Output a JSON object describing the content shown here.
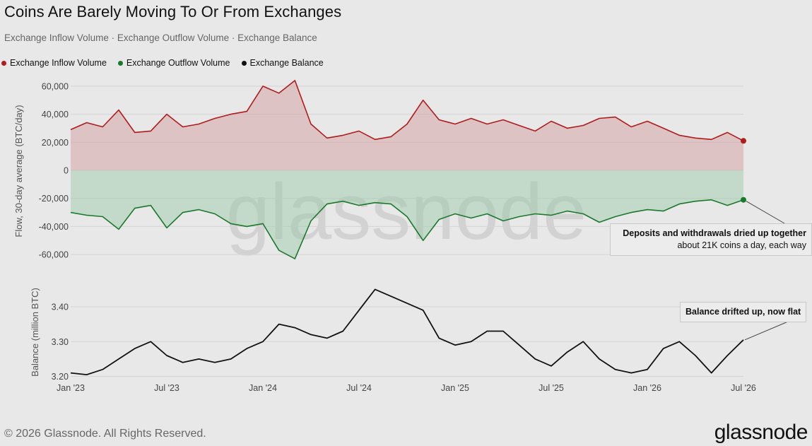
{
  "title": "Coins Are Barely Moving To Or From Exchanges",
  "subtitle": "Exchange Inflow Volume · Exchange Outflow Volume · Exchange Balance",
  "legend": [
    {
      "label": "Exchange Inflow Volume",
      "color": "#b01c1c"
    },
    {
      "label": "Exchange Outflow Volume",
      "color": "#1a7a2c"
    },
    {
      "label": "Exchange Balance",
      "color": "#111111"
    }
  ],
  "annotations": {
    "flow_title": "Deposits and withdrawals dried up together",
    "flow_body": "about 21K coins a day, each way",
    "balance": "Balance drifted up, now flat"
  },
  "footer": "© 2026 Glassnode. All Rights Reserved.",
  "brand": "glassnode",
  "watermark": "glassnode",
  "chart_data": [
    {
      "type": "area",
      "ylabel": "Flow, 30-day average (BTC/day)",
      "ylim": [
        -68000,
        68000
      ],
      "yticks": [
        60000,
        40000,
        20000,
        0,
        -20000,
        -40000,
        -60000
      ],
      "ytick_labels": [
        "60,000",
        "40,000",
        "20,000",
        "0",
        "-20,000",
        "-40,000",
        "-60,000"
      ],
      "grid": true,
      "x": [
        "2023-01",
        "2023-02",
        "2023-03",
        "2023-04",
        "2023-05",
        "2023-06",
        "2023-07",
        "2023-08",
        "2023-09",
        "2023-10",
        "2023-11",
        "2023-12",
        "2024-01",
        "2024-02",
        "2024-03",
        "2024-04",
        "2024-05",
        "2024-06",
        "2024-07",
        "2024-08",
        "2024-09",
        "2024-10",
        "2024-11",
        "2024-12",
        "2025-01",
        "2025-02",
        "2025-03",
        "2025-04",
        "2025-05",
        "2025-06",
        "2025-07",
        "2025-08",
        "2025-09",
        "2025-10",
        "2025-11",
        "2025-12",
        "2026-01",
        "2026-02",
        "2026-03",
        "2026-04",
        "2026-05",
        "2026-06",
        "2026-07"
      ],
      "series": [
        {
          "name": "Exchange Inflow Volume",
          "color": "#b01c1c",
          "values": [
            29000,
            34000,
            31000,
            43000,
            27000,
            28000,
            40000,
            31000,
            33000,
            37000,
            40000,
            42000,
            60000,
            55000,
            64000,
            33000,
            23000,
            25000,
            28000,
            22000,
            24000,
            33000,
            50000,
            36000,
            33000,
            37000,
            33000,
            36000,
            32000,
            28000,
            35000,
            30000,
            32000,
            37000,
            38000,
            31000,
            35000,
            30000,
            25000,
            23000,
            22000,
            27000,
            21000
          ]
        },
        {
          "name": "Exchange Outflow Volume",
          "color": "#1a7a2c",
          "values": [
            -30000,
            -32000,
            -33000,
            -42000,
            -27000,
            -25000,
            -41000,
            -30000,
            -28000,
            -31000,
            -38000,
            -40000,
            -38000,
            -57000,
            -63000,
            -36000,
            -24000,
            -22000,
            -25000,
            -23000,
            -24000,
            -33000,
            -50000,
            -35000,
            -31000,
            -34000,
            -31000,
            -36000,
            -33000,
            -31000,
            -32000,
            -29000,
            -31000,
            -37000,
            -33000,
            -30000,
            -28000,
            -29000,
            -24000,
            -22000,
            -21000,
            -25000,
            -21000
          ]
        }
      ]
    },
    {
      "type": "line",
      "ylabel": "Balance (million BTC)",
      "ylim": [
        3.195,
        3.465
      ],
      "yticks": [
        3.4,
        3.3,
        3.2
      ],
      "ytick_labels": [
        "3.40",
        "3.30",
        "3.20"
      ],
      "xtick_labels": [
        "Jan '23",
        "Jul '23",
        "Jan '24",
        "Jul '24",
        "Jan '25",
        "Jul '25",
        "Jan '26",
        "Jul '26"
      ],
      "grid": true,
      "x": [
        "2023-01",
        "2023-02",
        "2023-03",
        "2023-04",
        "2023-05",
        "2023-06",
        "2023-07",
        "2023-08",
        "2023-09",
        "2023-10",
        "2023-11",
        "2023-12",
        "2024-01",
        "2024-02",
        "2024-03",
        "2024-04",
        "2024-05",
        "2024-06",
        "2024-07",
        "2024-08",
        "2024-09",
        "2024-10",
        "2024-11",
        "2024-12",
        "2025-01",
        "2025-02",
        "2025-03",
        "2025-04",
        "2025-05",
        "2025-06",
        "2025-07",
        "2025-08",
        "2025-09",
        "2025-10",
        "2025-11",
        "2025-12",
        "2026-01",
        "2026-02",
        "2026-03",
        "2026-04",
        "2026-05",
        "2026-06",
        "2026-07"
      ],
      "series": [
        {
          "name": "Exchange Balance",
          "color": "#111111",
          "values": [
            3.21,
            3.205,
            3.22,
            3.25,
            3.28,
            3.3,
            3.26,
            3.24,
            3.25,
            3.24,
            3.25,
            3.28,
            3.3,
            3.35,
            3.34,
            3.32,
            3.31,
            3.33,
            3.39,
            3.45,
            3.43,
            3.41,
            3.39,
            3.31,
            3.29,
            3.3,
            3.33,
            3.33,
            3.29,
            3.25,
            3.23,
            3.27,
            3.3,
            3.25,
            3.22,
            3.21,
            3.22,
            3.28,
            3.3,
            3.26,
            3.21,
            3.26,
            3.305
          ]
        }
      ]
    }
  ]
}
